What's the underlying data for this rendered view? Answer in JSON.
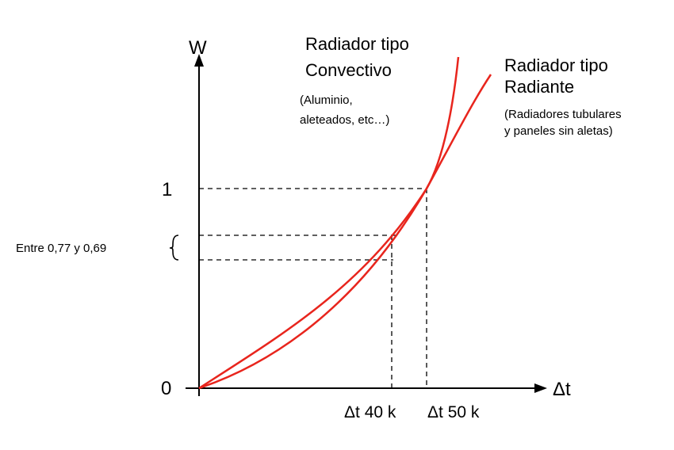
{
  "diagram": {
    "axis_y_label": "W",
    "axis_x_label": "Δt",
    "y_tick_zero": "0",
    "y_tick_one": "1",
    "range_label": "Entre 0,77 y 0,69",
    "x_tick_40": "Δt 40 k",
    "x_tick_50": "Δt 50 k",
    "convectivo": {
      "title_line1": "Radiador tipo",
      "title_line2": "Convectivo",
      "note_line1": "(Aluminio,",
      "note_line2": "aleteados, etc…)"
    },
    "radiante": {
      "title_line1": "Radiador tipo",
      "title_line2": "Radiante",
      "note_line1": "(Radiadores tubulares",
      "note_line2": "y paneles sin aletas)"
    },
    "colors": {
      "curve": "#e8251d",
      "axis": "#000000",
      "dashed": "#000000"
    }
  }
}
